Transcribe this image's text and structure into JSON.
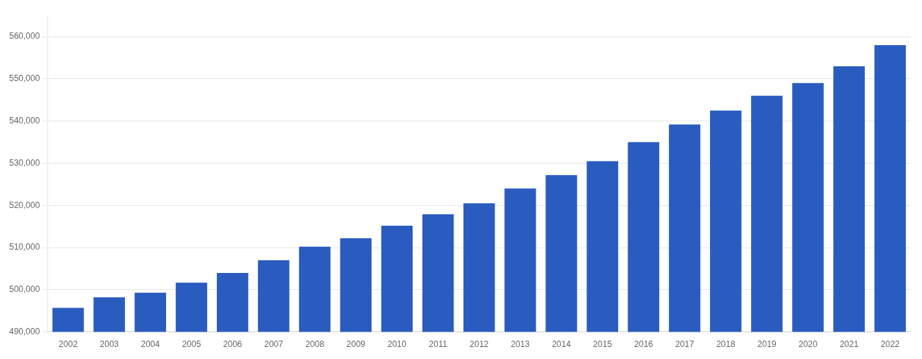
{
  "chart_data": {
    "type": "bar",
    "categories": [
      "2002",
      "2003",
      "2004",
      "2005",
      "2006",
      "2007",
      "2008",
      "2009",
      "2010",
      "2011",
      "2012",
      "2013",
      "2014",
      "2015",
      "2016",
      "2017",
      "2018",
      "2019",
      "2020",
      "2021",
      "2022"
    ],
    "values": [
      495700,
      498200,
      499300,
      501700,
      504000,
      507000,
      510200,
      512200,
      515200,
      517900,
      520500,
      524000,
      527200,
      530500,
      535000,
      539200,
      542500,
      546000,
      549000,
      553000,
      558000
    ],
    "color": "#2a5cbf",
    "ylim": [
      490000,
      565000
    ],
    "yticks": [
      {
        "value": 490000,
        "label": "490,000"
      },
      {
        "value": 500000,
        "label": "500,000"
      },
      {
        "value": 510000,
        "label": "510,000"
      },
      {
        "value": 520000,
        "label": "520,000"
      },
      {
        "value": 530000,
        "label": "530,000"
      },
      {
        "value": 540000,
        "label": "540,000"
      },
      {
        "value": 550000,
        "label": "550,000"
      },
      {
        "value": 560000,
        "label": "560,000"
      }
    ],
    "grid": true
  }
}
